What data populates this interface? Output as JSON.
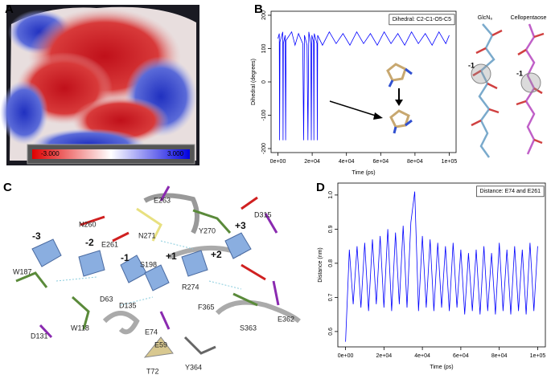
{
  "panel_labels": [
    "A",
    "B",
    "C",
    "D"
  ],
  "panel_a": {
    "colorbar_labels": [
      "-3.000",
      "3.000"
    ]
  },
  "panel_b_structures": {
    "labels": [
      "GlcN₆",
      "Cellopentaose"
    ],
    "site_labels": [
      "-1",
      "-1"
    ]
  },
  "panel_c": {
    "site_labels": [
      "-3",
      "-2",
      "-1",
      "+1",
      "+2",
      "+3"
    ],
    "residue_labels": [
      "E263",
      "N260",
      "D315",
      "E261",
      "N271",
      "Y270",
      "S198",
      "W187",
      "R274",
      "D63",
      "D135",
      "E74",
      "F365",
      "E362",
      "W118",
      "E59",
      "S363",
      "D131",
      "T72",
      "Y364"
    ]
  },
  "chart_data": [
    {
      "type": "line",
      "title": "Dihedral: C2-C1-O5-C5",
      "x_label": "Time (ps)",
      "y_label": "Dihedral (degrees)",
      "x": [
        0,
        800,
        1000,
        1200,
        2800,
        3000,
        3200,
        4200,
        4500,
        4800,
        8000,
        10000,
        12000,
        14500,
        15000,
        15500,
        17000,
        17500,
        18000,
        19200,
        19500,
        19800,
        20800,
        21000,
        21200,
        22800,
        23000,
        23200,
        26000,
        30000,
        34000,
        38000,
        42000,
        46000,
        50000,
        54000,
        58000,
        62000,
        66000,
        70000,
        74000,
        78000,
        82000,
        86000,
        90000,
        94000,
        98000,
        100000
      ],
      "series": [
        {
          "color": "#0000ff",
          "values": [
            130,
            145,
            -175,
            120,
            150,
            -175,
            115,
            140,
            -175,
            125,
            150,
            110,
            145,
            115,
            -175,
            140,
            110,
            -175,
            150,
            115,
            -175,
            140,
            120,
            -175,
            145,
            115,
            -175,
            140,
            110,
            150,
            115,
            145,
            110,
            150,
            115,
            145,
            110,
            150,
            115,
            145,
            110,
            150,
            115,
            145,
            110,
            150,
            115,
            140
          ]
        }
      ],
      "xlim": [
        -4000,
        104000
      ],
      "ylim": [
        -212,
        212
      ],
      "xticks": [
        {
          "value": 0,
          "label": "0e+00"
        },
        {
          "value": 20000,
          "label": "2e+04"
        },
        {
          "value": 40000,
          "label": "4e+04"
        },
        {
          "value": 60000,
          "label": "6e+04"
        },
        {
          "value": 80000,
          "label": "8e+04"
        },
        {
          "value": 100000,
          "label": "1e+05"
        }
      ],
      "yticks": [
        -200,
        -100,
        0,
        100,
        200
      ]
    },
    {
      "type": "line",
      "title": "Distance: E74 and E261",
      "x_label": "Time (ps)",
      "y_label": "Distance (nm)",
      "x": [
        0,
        2000,
        4000,
        6000,
        8000,
        10000,
        12000,
        14000,
        16000,
        18000,
        20000,
        22000,
        24000,
        26000,
        28000,
        30000,
        32000,
        34000,
        36000,
        38000,
        40000,
        42000,
        44000,
        46000,
        48000,
        50000,
        52000,
        54000,
        56000,
        58000,
        60000,
        62000,
        64000,
        66000,
        68000,
        70000,
        72000,
        74000,
        76000,
        78000,
        80000,
        82000,
        84000,
        86000,
        88000,
        90000,
        92000,
        94000,
        96000,
        98000,
        100000
      ],
      "series": [
        {
          "color": "#0000ff",
          "values": [
            0.57,
            0.84,
            0.68,
            0.85,
            0.67,
            0.86,
            0.66,
            0.87,
            0.68,
            0.88,
            0.67,
            0.9,
            0.66,
            0.89,
            0.68,
            0.91,
            0.67,
            0.92,
            1.01,
            0.66,
            0.88,
            0.67,
            0.87,
            0.66,
            0.86,
            0.67,
            0.85,
            0.66,
            0.86,
            0.67,
            0.84,
            0.65,
            0.83,
            0.66,
            0.84,
            0.65,
            0.85,
            0.66,
            0.83,
            0.65,
            0.86,
            0.66,
            0.84,
            0.65,
            0.85,
            0.66,
            0.84,
            0.65,
            0.86,
            0.66,
            0.85
          ]
        }
      ],
      "xlim": [
        -4000,
        104000
      ],
      "ylim": [
        0.555,
        1.035
      ],
      "xticks": [
        {
          "value": 0,
          "label": "0e+00"
        },
        {
          "value": 20000,
          "label": "2e+04"
        },
        {
          "value": 40000,
          "label": "4e+04"
        },
        {
          "value": 60000,
          "label": "6e+04"
        },
        {
          "value": 80000,
          "label": "8e+04"
        },
        {
          "value": 100000,
          "label": "1e+05"
        }
      ],
      "yticks": [
        0.6,
        0.7,
        0.8,
        0.9,
        {
          "value": 1,
          "label": "1.0"
        }
      ]
    }
  ]
}
